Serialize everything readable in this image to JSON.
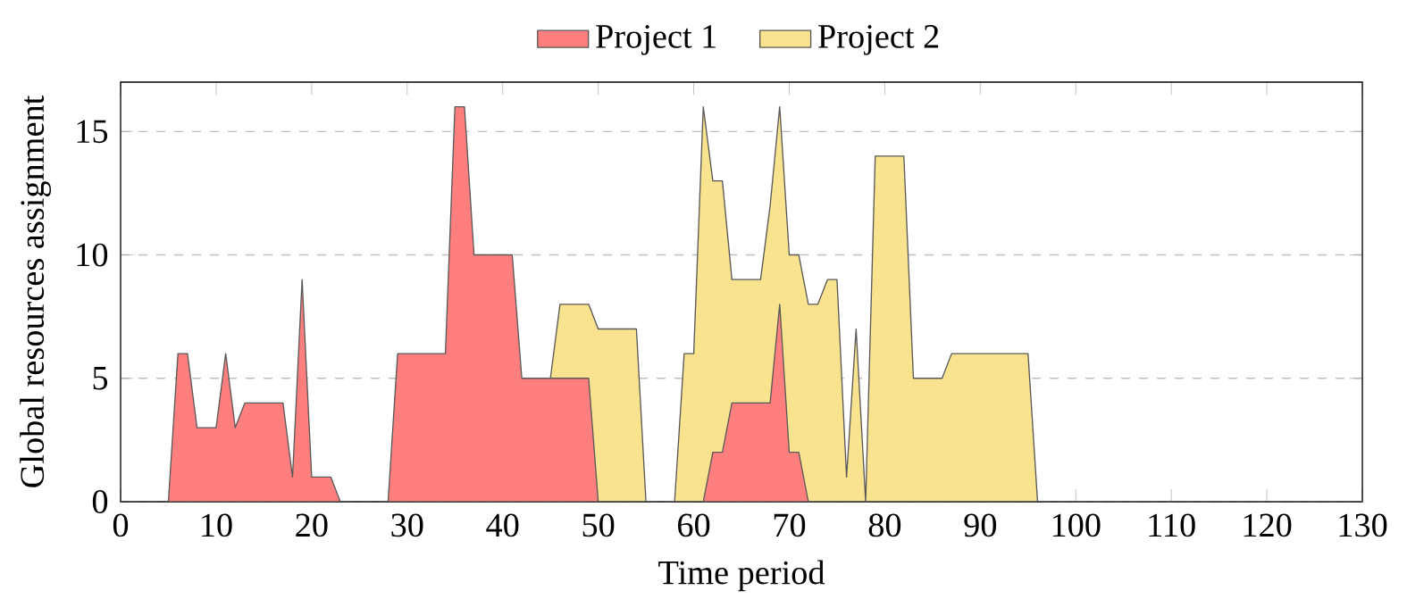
{
  "chart_data": {
    "type": "area",
    "xlabel": "Time period",
    "ylabel": "Global resources assignment",
    "xlim": [
      0,
      130
    ],
    "ylim": [
      0,
      17
    ],
    "xticks": [
      0,
      10,
      20,
      30,
      40,
      50,
      60,
      70,
      80,
      90,
      100,
      110,
      120,
      130
    ],
    "yticks": [
      0,
      5,
      10,
      15
    ],
    "grid": "y",
    "legend": "top",
    "line_style": "solid",
    "marker": "none",
    "series": [
      {
        "name": "Project 1",
        "color": "#ff7f7f",
        "x": [
          0,
          5,
          6,
          7,
          8,
          10,
          11,
          12,
          13,
          17,
          18,
          19,
          20,
          22,
          23,
          28,
          29,
          34,
          35,
          36,
          37,
          41,
          42,
          49,
          50,
          61,
          62,
          63,
          64,
          68,
          69,
          70,
          71,
          72,
          130
        ],
        "values": [
          0,
          0,
          6,
          6,
          3,
          3,
          6,
          3,
          4,
          4,
          1,
          9,
          1,
          1,
          0,
          0,
          6,
          6,
          16,
          16,
          10,
          10,
          5,
          5,
          0,
          0,
          2,
          2,
          4,
          4,
          8,
          2,
          2,
          0,
          0
        ]
      },
      {
        "name": "Project 2",
        "color": "#f9e38f",
        "x": [
          44,
          45,
          46,
          49,
          50,
          54,
          55,
          58,
          59,
          60,
          61,
          62,
          63,
          64,
          67,
          68,
          69,
          70,
          71,
          72,
          73,
          74,
          75,
          76,
          77,
          78,
          79,
          82,
          83,
          86,
          87,
          95,
          96,
          130
        ],
        "values": [
          0,
          5,
          8,
          8,
          7,
          7,
          0,
          0,
          6,
          6,
          16,
          13,
          13,
          9,
          9,
          12,
          16,
          10,
          10,
          8,
          8,
          9,
          9,
          1,
          7,
          0,
          14,
          14,
          5,
          5,
          6,
          6,
          0,
          0
        ]
      }
    ]
  }
}
